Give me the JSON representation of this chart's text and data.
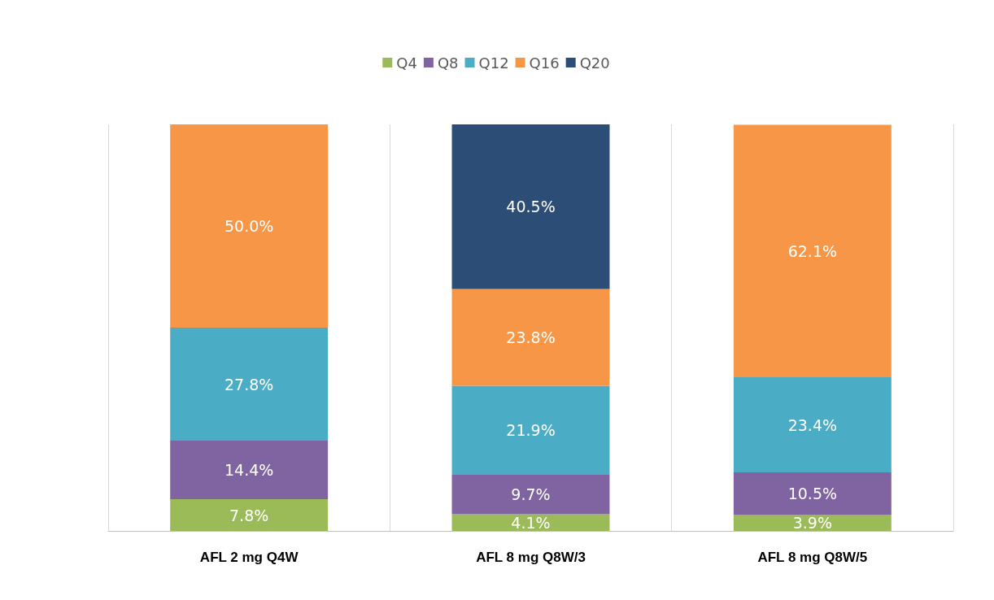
{
  "chart_data": {
    "type": "bar",
    "stacked": true,
    "legend": "top",
    "grid": "x",
    "tick_labels": "x",
    "categories": [
      "AFL 2 mg Q4W",
      "AFL 8 mg Q8W/3",
      "AFL 8 mg Q8W/5"
    ],
    "series": [
      {
        "name": "Q4",
        "color": "#9bbb59",
        "values": [
          7.8,
          4.1,
          3.9
        ],
        "value_labels": [
          "7.8%",
          "4.1%",
          "3.9%"
        ]
      },
      {
        "name": "Q8",
        "color": "#8064a2",
        "values": [
          14.4,
          9.7,
          10.5
        ],
        "value_labels": [
          "14.4%",
          "9.7%",
          "10.5%"
        ]
      },
      {
        "name": "Q12",
        "color": "#4bacc6",
        "values": [
          27.8,
          21.9,
          23.4
        ],
        "value_labels": [
          "27.8%",
          "21.9%",
          "23.4%"
        ]
      },
      {
        "name": "Q16",
        "color": "#f79646",
        "values": [
          50.0,
          23.8,
          62.1
        ],
        "value_labels": [
          "50.0%",
          "23.8%",
          "62.1%"
        ]
      },
      {
        "name": "Q20",
        "color": "#2c4d75",
        "values": [
          null,
          40.5,
          null
        ],
        "value_labels": [
          null,
          "40.5%",
          null
        ]
      }
    ]
  }
}
